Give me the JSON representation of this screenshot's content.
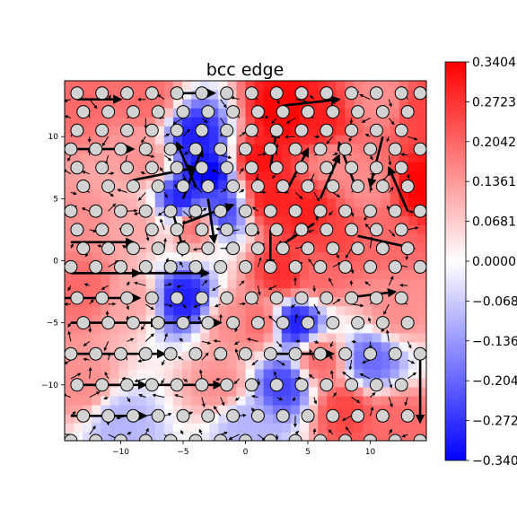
{
  "chart_data": {
    "type": "heatmap",
    "title": "bcc edge",
    "xlabel": "",
    "ylabel": "",
    "xlim": [
      -14.5,
      14.5
    ],
    "ylim": [
      -14.5,
      14.5
    ],
    "x_ticks": [
      -10,
      -5,
      0,
      5,
      10
    ],
    "y_ticks": [
      -10,
      -5,
      0,
      5,
      10
    ],
    "x_tick_labels": [
      "−10",
      "−5",
      "0",
      "5",
      "10"
    ],
    "y_tick_labels": [
      "−10",
      "−5",
      "0",
      "5",
      "10"
    ],
    "grid": false,
    "colormap": "bwr",
    "colormap_colors": {
      "min": "#0000ff",
      "mid": "#ffffff",
      "max": "#ff0000"
    },
    "vmin": -0.3404,
    "vmax": 0.3404,
    "colorbar_ticks": [
      0.3404,
      0.2723,
      0.2042,
      0.1361,
      0.0681,
      0.0,
      -0.0681,
      -0.1361,
      -0.2042,
      -0.2723,
      -0.3404
    ],
    "colorbar_tick_labels": [
      "0.3404",
      "0.2723",
      "0.2042",
      "0.1361",
      "0.0681",
      "0.0000",
      "−0.068",
      "−0.136",
      "−0.204",
      "−0.272",
      "−0.340"
    ],
    "field_samples": [
      {
        "x": -13,
        "y": 13,
        "v": 0.2
      },
      {
        "x": -8,
        "y": 13,
        "v": 0.2
      },
      {
        "x": 3,
        "y": 12,
        "v": 0.34
      },
      {
        "x": 6,
        "y": 11,
        "v": 0.3
      },
      {
        "x": 11,
        "y": 13,
        "v": 0.15
      },
      {
        "x": 14,
        "y": 12,
        "v": 0.25
      },
      {
        "x": -4,
        "y": 10,
        "v": -0.3
      },
      {
        "x": -3,
        "y": 7,
        "v": -0.34
      },
      {
        "x": -5,
        "y": 5,
        "v": -0.3
      },
      {
        "x": -2,
        "y": 4,
        "v": -0.25
      },
      {
        "x": 1,
        "y": 8,
        "v": 0.32
      },
      {
        "x": 2,
        "y": 5,
        "v": 0.3
      },
      {
        "x": 5,
        "y": 4,
        "v": 0.3
      },
      {
        "x": 7,
        "y": 8,
        "v": 0.15
      },
      {
        "x": 10,
        "y": 6,
        "v": 0.15
      },
      {
        "x": 14,
        "y": 6,
        "v": 0.34
      },
      {
        "x": 7,
        "y": 2,
        "v": 0.25
      },
      {
        "x": 11,
        "y": 2,
        "v": 0.2
      },
      {
        "x": -13,
        "y": 3,
        "v": 0.15
      },
      {
        "x": -9,
        "y": 3,
        "v": 0.12
      },
      {
        "x": -4,
        "y": 3,
        "v": 0.2
      },
      {
        "x": 3,
        "y": -1,
        "v": 0.28
      },
      {
        "x": 6,
        "y": -1,
        "v": 0.2
      },
      {
        "x": -5,
        "y": -3,
        "v": -0.3
      },
      {
        "x": -9,
        "y": -3,
        "v": 0.12
      },
      {
        "x": -13,
        "y": -2,
        "v": 0.2
      },
      {
        "x": 4,
        "y": -5,
        "v": -0.3
      },
      {
        "x": 1,
        "y": -5,
        "v": 0.2
      },
      {
        "x": -1,
        "y": -5,
        "v": 0.15
      },
      {
        "x": 6,
        "y": -8,
        "v": 0.2
      },
      {
        "x": 3,
        "y": -10,
        "v": -0.25
      },
      {
        "x": 10,
        "y": -8,
        "v": -0.2
      },
      {
        "x": -13,
        "y": -10,
        "v": 0.15
      },
      {
        "x": -2,
        "y": -10,
        "v": 0.15
      },
      {
        "x": 8,
        "y": -12,
        "v": 0.25
      },
      {
        "x": 12,
        "y": -13,
        "v": 0.2
      },
      {
        "x": -10,
        "y": -13,
        "v": -0.1
      },
      {
        "x": 0,
        "y": -13,
        "v": -0.1
      },
      {
        "x": 12,
        "y": -4,
        "v": 0.15
      },
      {
        "x": -8,
        "y": 8,
        "v": 0.15
      }
    ],
    "atom_rows": [
      {
        "y": 13.5,
        "xs": [
          -13.5,
          -11.5,
          -9.5,
          -7.5,
          -5.5,
          -3.5,
          -1.5,
          0.5,
          2.5,
          4.5,
          6.5,
          8.5,
          10.5,
          12.5,
          14.0
        ]
      },
      {
        "y": 12.0,
        "xs": [
          -13.0,
          -11.0,
          -9.0,
          -7.0,
          -5.0,
          -3.0,
          -1.0,
          1.0,
          3.0,
          5.0,
          7.0,
          9.0,
          11.0,
          13.0
        ]
      },
      {
        "y": 10.5,
        "xs": [
          -13.5,
          -11.5,
          -9.5,
          -7.5,
          -5.5,
          -3.5,
          -1.5,
          0.5,
          2.5,
          4.5,
          6.5,
          8.5,
          10.5,
          12.5
        ]
      },
      {
        "y": 9.0,
        "xs": [
          -14.0,
          -12.0,
          -10.0,
          -8.0,
          -6.0,
          -4.0,
          -2.0,
          0.0,
          2.0,
          4.0,
          6.0,
          8.0,
          10.0,
          12.0,
          14.0
        ]
      },
      {
        "y": 7.5,
        "xs": [
          -13.5,
          -11.5,
          -9.5,
          -7.5,
          -5.5,
          -3.5,
          -1.5,
          0.5,
          2.5,
          4.5,
          6.5,
          8.5,
          10.5,
          12.5
        ]
      },
      {
        "y": 6.0,
        "xs": [
          -13.0,
          -11.0,
          -9.0,
          -7.0,
          -5.0,
          -3.0,
          -1.0,
          1.0,
          3.0,
          5.0,
          7.0,
          9.0,
          11.0,
          13.0
        ]
      },
      {
        "y": 4.0,
        "xs": [
          -14.0,
          -12.0,
          -10.0,
          -8.0,
          -6.0,
          -4.0,
          -2.0,
          0.0,
          2.0,
          4.0,
          6.0,
          8.0,
          10.0,
          12.0,
          14.0
        ]
      },
      {
        "y": 2.5,
        "xs": [
          -13.5,
          -11.5,
          -9.5,
          -7.5,
          -5.5,
          -3.5,
          -1.5,
          0.5,
          2.5,
          4.5,
          6.5,
          8.5,
          10.5,
          12.5
        ]
      },
      {
        "y": 1.0,
        "xs": [
          -13.0,
          -11.0,
          -9.0,
          -7.0,
          -5.0,
          -3.0,
          -1.0,
          1.0,
          3.0,
          5.0,
          7.0,
          9.0,
          11.0,
          13.0
        ]
      },
      {
        "y": -0.5,
        "xs": [
          -14.0,
          -12.0,
          -10.0,
          -8.0,
          -6.0,
          -4.0,
          -2.0,
          0.0,
          2.0,
          4.0,
          6.0,
          8.0,
          10.0,
          12.0,
          14.0
        ]
      },
      {
        "y": -3.0,
        "xs": [
          -13.5,
          -11.5,
          -9.5,
          -7.5,
          -5.5,
          -3.5,
          -1.5,
          0.5,
          2.5,
          4.5,
          6.5,
          8.5,
          10.5,
          12.5
        ]
      },
      {
        "y": -5.0,
        "xs": [
          -13.0,
          -11.0,
          -9.0,
          -7.0,
          -5.0,
          -3.0,
          -1.0,
          1.0,
          3.0,
          5.0,
          7.0,
          9.0,
          11.0,
          13.0
        ]
      },
      {
        "y": -7.5,
        "xs": [
          -14.0,
          -12.0,
          -10.0,
          -8.0,
          -6.0,
          -4.0,
          -2.0,
          0.0,
          2.0,
          4.0,
          6.0,
          8.0,
          10.0,
          12.0,
          14.0
        ]
      },
      {
        "y": -10.0,
        "xs": [
          -13.5,
          -11.5,
          -9.5,
          -7.5,
          -5.5,
          -3.5,
          -1.5,
          0.5,
          2.5,
          4.5,
          6.5,
          8.5,
          10.5,
          12.5
        ]
      },
      {
        "y": -12.5,
        "xs": [
          -13.0,
          -11.0,
          -9.0,
          -7.0,
          -5.0,
          -3.0,
          -1.0,
          1.0,
          3.0,
          5.0,
          7.0,
          9.0,
          11.0,
          13.0
        ]
      },
      {
        "y": -14.5,
        "xs": [
          -14.0,
          -12.0,
          -10.0,
          -8.0,
          -6.0,
          -4.0,
          -2.0,
          0.0,
          2.0,
          4.0,
          6.0,
          8.0,
          10.0,
          12.0,
          14.0
        ]
      }
    ],
    "long_arrows": [
      {
        "x": -13.5,
        "y": 13.0,
        "dx": 3.5,
        "dy": 0.0
      },
      {
        "x": -6.0,
        "y": 13.5,
        "dx": 3.5,
        "dy": 0.0
      },
      {
        "x": -14.0,
        "y": 9.0,
        "dx": 5.0,
        "dy": 0.0
      },
      {
        "x": -9.0,
        "y": 6.5,
        "dx": 5.0,
        "dy": 1.0
      },
      {
        "x": -5.0,
        "y": 5.0,
        "dx": 1.5,
        "dy": 4.0
      },
      {
        "x": -4.0,
        "y": 6.0,
        "dx": -1.5,
        "dy": 3.5
      },
      {
        "x": -6.0,
        "y": 4.5,
        "dx": 1.0,
        "dy": -3.5
      },
      {
        "x": -3.0,
        "y": 5.0,
        "dx": 0.5,
        "dy": -3.5
      },
      {
        "x": 2.0,
        "y": 7.5,
        "dx": 0.5,
        "dy": 3.0
      },
      {
        "x": 3.5,
        "y": 6.0,
        "dx": 1.5,
        "dy": 3.0
      },
      {
        "x": 6.0,
        "y": 5.0,
        "dx": 1.5,
        "dy": 3.5
      },
      {
        "x": 9.0,
        "y": 5.5,
        "dx": -1.5,
        "dy": 4.0
      },
      {
        "x": 11.0,
        "y": 10.0,
        "dx": -1.0,
        "dy": -4.0
      },
      {
        "x": 13.0,
        "y": 4.0,
        "dx": -1.5,
        "dy": 3.5
      },
      {
        "x": -14.0,
        "y": 1.5,
        "dx": 5.0,
        "dy": 0.0
      },
      {
        "x": -5.0,
        "y": 3.0,
        "dx": 4.0,
        "dy": 1.5
      },
      {
        "x": 2.0,
        "y": 2.5,
        "dx": 0.0,
        "dy": -3.0
      },
      {
        "x": 5.5,
        "y": 3.0,
        "dx": -3.0,
        "dy": -2.0
      },
      {
        "x": 9.0,
        "y": 2.0,
        "dx": 4.5,
        "dy": -1.0
      },
      {
        "x": -14.0,
        "y": -1.0,
        "dx": 5.5,
        "dy": 0.0
      },
      {
        "x": -9.0,
        "y": -1.0,
        "dx": 6.0,
        "dy": 0.0
      },
      {
        "x": -14.5,
        "y": -3.0,
        "dx": 6.0,
        "dy": 0.0
      },
      {
        "x": -14.0,
        "y": -5.0,
        "dx": 7.0,
        "dy": 0.0
      },
      {
        "x": -7.0,
        "y": -5.0,
        "dx": 5.0,
        "dy": 0.0
      },
      {
        "x": -14.0,
        "y": -7.5,
        "dx": 7.5,
        "dy": 0.0
      },
      {
        "x": 2.0,
        "y": -7.5,
        "dx": 5.0,
        "dy": 0.0
      },
      {
        "x": -14.0,
        "y": -10.0,
        "dx": 6.0,
        "dy": 0.0
      },
      {
        "x": -7.0,
        "y": -10.0,
        "dx": 5.0,
        "dy": 0.0
      },
      {
        "x": -14.0,
        "y": -12.5,
        "dx": 6.0,
        "dy": 0.0
      },
      {
        "x": 14.0,
        "y": -7.0,
        "dx": 0.0,
        "dy": -6.0
      },
      {
        "x": 8.0,
        "y": -3.0,
        "dx": 4.0,
        "dy": 0.5
      },
      {
        "x": 3.0,
        "y": 12.5,
        "dx": 4.5,
        "dy": 0.5
      }
    ]
  }
}
